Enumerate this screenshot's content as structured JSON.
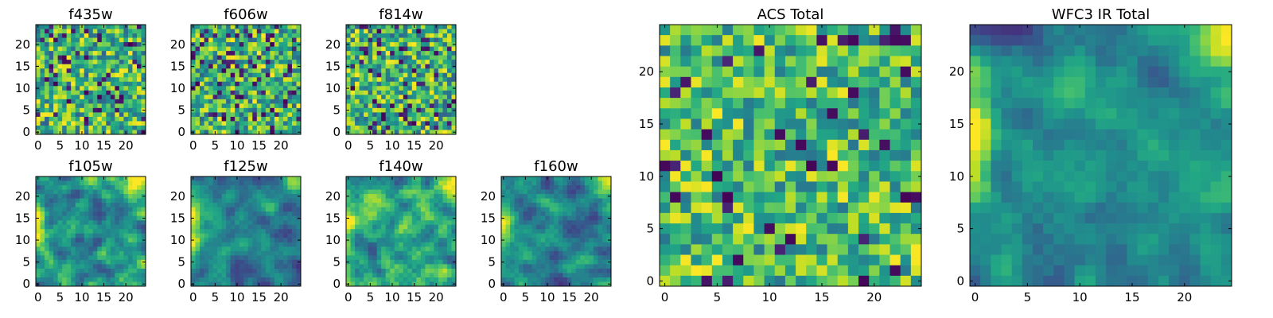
{
  "figure": {
    "background": "#ffffff"
  },
  "chart_data": [
    {
      "type": "heatmap",
      "title": "f435w",
      "grid_size": 25,
      "xlim": [
        0,
        24
      ],
      "ylim": [
        0,
        24
      ],
      "xticks": [
        "0",
        "5",
        "10",
        "15",
        "20"
      ],
      "yticks": [
        "0",
        "5",
        "10",
        "15",
        "20"
      ],
      "colormap": "viridis",
      "pattern": "noise",
      "seed": 11,
      "description_values": "pixel intensities, normalized 0-1 (noise-like)"
    },
    {
      "type": "heatmap",
      "title": "f606w",
      "grid_size": 25,
      "xlim": [
        0,
        24
      ],
      "ylim": [
        0,
        24
      ],
      "xticks": [
        "0",
        "5",
        "10",
        "15",
        "20"
      ],
      "yticks": [
        "0",
        "5",
        "10",
        "15",
        "20"
      ],
      "colormap": "viridis",
      "pattern": "noise",
      "seed": 23
    },
    {
      "type": "heatmap",
      "title": "f814w",
      "grid_size": 25,
      "xlim": [
        0,
        24
      ],
      "ylim": [
        0,
        24
      ],
      "xticks": [
        "0",
        "5",
        "10",
        "15",
        "20"
      ],
      "yticks": [
        "0",
        "5",
        "10",
        "15",
        "20"
      ],
      "colormap": "viridis",
      "pattern": "noise",
      "seed": 37
    },
    {
      "type": "heatmap",
      "title": "f105w",
      "grid_size": 25,
      "xlim": [
        0,
        24
      ],
      "ylim": [
        0,
        24
      ],
      "xticks": [
        "0",
        "5",
        "10",
        "15",
        "20"
      ],
      "yticks": [
        "0",
        "5",
        "10",
        "15",
        "20"
      ],
      "colormap": "viridis",
      "pattern": "smooth",
      "seed": 41
    },
    {
      "type": "heatmap",
      "title": "f125w",
      "grid_size": 25,
      "xlim": [
        0,
        24
      ],
      "ylim": [
        0,
        24
      ],
      "xticks": [
        "0",
        "5",
        "10",
        "15",
        "20"
      ],
      "yticks": [
        "0",
        "5",
        "10",
        "15",
        "20"
      ],
      "colormap": "viridis",
      "pattern": "smooth-dark",
      "seed": 53
    },
    {
      "type": "heatmap",
      "title": "f140w",
      "grid_size": 25,
      "xlim": [
        0,
        24
      ],
      "ylim": [
        0,
        24
      ],
      "xticks": [
        "0",
        "5",
        "10",
        "15",
        "20"
      ],
      "yticks": [
        "0",
        "5",
        "10",
        "15",
        "20"
      ],
      "colormap": "viridis",
      "pattern": "smooth",
      "seed": 67
    },
    {
      "type": "heatmap",
      "title": "f160w",
      "grid_size": 25,
      "xlim": [
        0,
        24
      ],
      "ylim": [
        0,
        24
      ],
      "xticks": [
        "0",
        "5",
        "10",
        "15",
        "20"
      ],
      "yticks": [
        "0",
        "5",
        "10",
        "15",
        "20"
      ],
      "colormap": "viridis",
      "pattern": "smooth-dark",
      "seed": 71
    },
    {
      "type": "heatmap",
      "title": "ACS Total",
      "grid_size": 25,
      "xlim": [
        0,
        24
      ],
      "ylim": [
        0,
        24
      ],
      "xticks": [
        "0",
        "5",
        "10",
        "15",
        "20"
      ],
      "yticks": [
        "0",
        "5",
        "10",
        "15",
        "20"
      ],
      "colormap": "viridis",
      "pattern": "noise-bright",
      "seed": 83
    },
    {
      "type": "heatmap",
      "title": "WFC3 IR Total",
      "grid_size": 25,
      "xlim": [
        0,
        24
      ],
      "ylim": [
        0,
        24
      ],
      "xticks": [
        "0",
        "5",
        "10",
        "15",
        "20"
      ],
      "yticks": [
        "0",
        "5",
        "10",
        "15",
        "20"
      ],
      "colormap": "viridis",
      "pattern": "smooth-dark",
      "seed": 97
    }
  ]
}
